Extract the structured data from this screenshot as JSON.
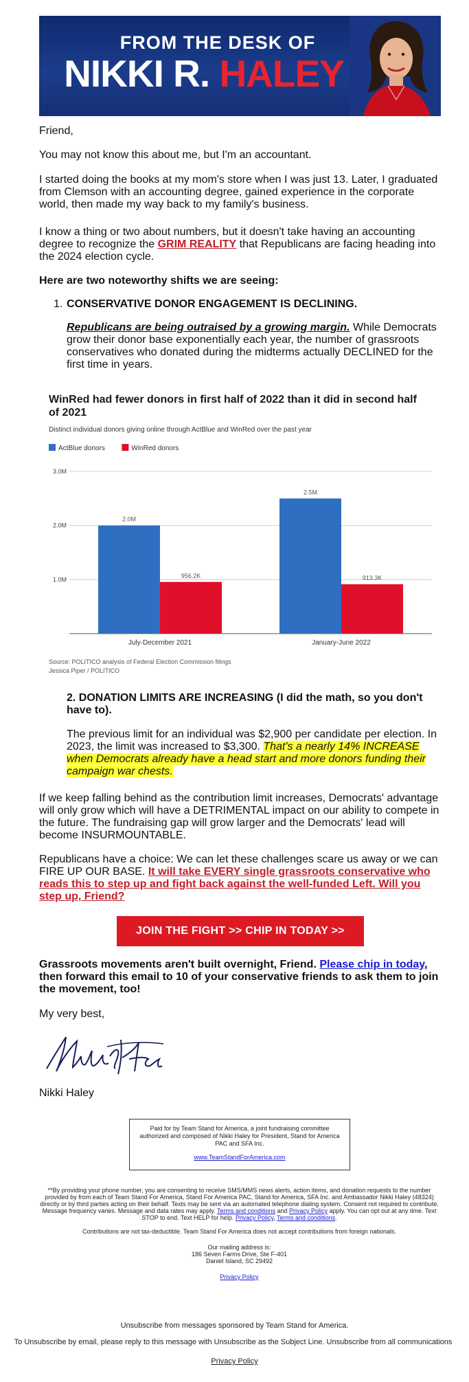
{
  "header": {
    "from_line": "FROM THE DESK OF",
    "name_first": "NIKKI R. ",
    "name_last": "HALEY"
  },
  "colors": {
    "navy": "#1b3c8c",
    "red": "#dd1a24",
    "actblue": "#2f6fc2",
    "winred": "#e0102a",
    "highlight": "#ffff33"
  },
  "greeting": "Friend,",
  "p1": "You may not know this about me, but I'm an accountant.",
  "p2": "I started doing the books at my mom's store when I was just 13. Later, I graduated from Clemson with an accounting degree, gained experience in the corporate world, then made my way back to my family's business.",
  "p3": {
    "before": "I know a thing or two about numbers, but it doesn't take having an accounting degree to recognize the ",
    "link": "GRIM REALITY",
    "after": " that Republicans are facing heading into the 2024 election cycle."
  },
  "shifts_heading": "Here are two noteworthy shifts we are seeing:",
  "item1": {
    "num": "1.",
    "title": "CONSERVATIVE DONOR ENGAGEMENT IS DECLINING.",
    "emph": "Republicans are being outraised by a growing margin.",
    "rest": " While Democrats grow their donor base exponentially each year, the number of grassroots conservatives who donated during the midterms actually DECLINED for the first time in years."
  },
  "chart_data": {
    "type": "bar",
    "title": "WinRed had fewer donors in first half of 2022 than it did in second half of 2021",
    "subtitle": "Distinct individual donors giving online through ActBlue and WinRed over the past year",
    "categories": [
      "July-December 2021",
      "January-June 2022"
    ],
    "series": [
      {
        "name": "ActBlue donors",
        "values": [
          2000000,
          2500000
        ],
        "labels": [
          "2.0M",
          "2.5M"
        ],
        "color": "#2f6fc2"
      },
      {
        "name": "WinRed donors",
        "values": [
          956200,
          913300
        ],
        "labels": [
          "956.2K",
          "913.3K"
        ],
        "color": "#e0102a"
      }
    ],
    "y_ticks": [
      1000000,
      2000000,
      3000000
    ],
    "y_tick_labels": [
      "1.0M",
      "2.0M",
      "3.0M"
    ],
    "ylim": [
      0,
      3000000
    ],
    "grid": true,
    "legend": "top-left",
    "source": "Source: POLITICO analysis of Federal Election Commission filings",
    "credit": "Jessica Piper / POLITICO"
  },
  "item2": {
    "title": "2. DONATION LIMITS ARE INCREASING (I did the math, so you don't have to).",
    "text": "The previous limit for an individual was $2,900 per candidate per election. In 2023, the limit was increased to $3,300. ",
    "highlight": "That's a nearly 14% INCREASE when Democrats already have a head start and more donors funding their campaign war chests."
  },
  "p4": "If we keep falling behind as the contribution limit increases, Democrats' advantage will only grow which will have a DETRIMENTAL impact on our ability to compete in the future. The fundraising gap will grow larger and the Democrats' lead will become INSURMOUNTABLE.",
  "p5": {
    "before": "Republicans have a choice: We can let these challenges scare us away or we can FIRE UP OUR BASE. ",
    "link": "It will take EVERY single grassroots conservative who reads this to step up and fight back against the well-funded Left. Will you step up, Friend?"
  },
  "cta_label": "JOIN THE FIGHT >> CHIP IN TODAY >>",
  "p6": {
    "before": "Grassroots movements aren't built overnight, Friend. ",
    "link": "Please chip in today",
    "after": ", then forward this email to 10 of your conservative friends to ask them to join the movement, too!"
  },
  "closing": "My very best,",
  "signature_name": "Nikki Haley",
  "paid_for": "Paid for by Team Stand for America, a joint fundraising committee authorized and composed of Nikki Haley for President, Stand for America PAC and SFA Inc.",
  "paid_link": "www.TeamStandForAmerica.com",
  "sms": {
    "text": "**By providing your phone number, you are consenting to receive SMS/MMS news alerts, action items, and donation requests to the number provided by from each of Team Stand For America, Stand For America PAC, Stand for America, SFA Inc. and Ambassador Nikki Haley (48324) directly or by third parties acting on their behalf. Texts may be sent via an automated telephone dialing system. Consent not required to contribute. Message frequency varies. Message and data rates may apply. ",
    "terms1": "Terms and conditions",
    "and1": " and ",
    "privacy1": "Privacy Policy",
    "mid": " apply. You can opt out at any time. Text STOP to end. Text HELP for help. ",
    "privacy2": "Privacy Policy",
    "comma": ", ",
    "terms2": "Terms and conditions",
    "end": "."
  },
  "not_deductible": "Contributions are not tax-deductible. Team Stand For America does not accept contributions from foreign nationals.",
  "address": {
    "label": "Our mailing address is:",
    "line1": "186 Seven Farms Drive, Ste F-401",
    "line2": "Daniel Island, SC 29492"
  },
  "privacy_link": "Privacy Policy",
  "unsubscribe": "Unsubscribe from messages sponsored by Team Stand for America.",
  "unsubscribe_email": "To Unsubscribe by email, please reply to this message with Unsubscribe as the Subject Line. Unsubscribe from all communications",
  "privacy_link_bottom": "Privacy Policy"
}
